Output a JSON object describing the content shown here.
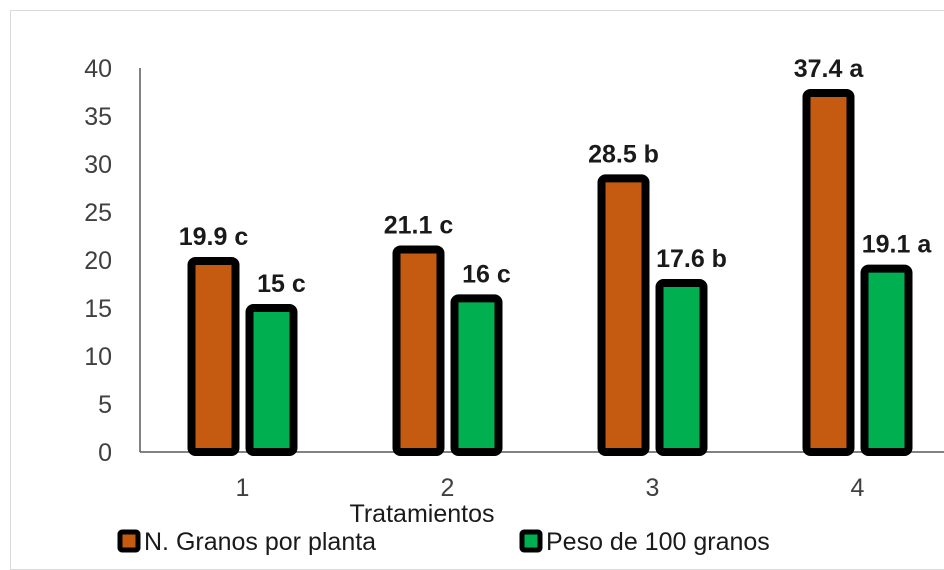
{
  "chart_data": {
    "type": "bar",
    "categories": [
      "1",
      "2",
      "3",
      "4"
    ],
    "xlabel": "Tratamientos",
    "ylabel": "",
    "title": "",
    "ylim": [
      0,
      40
    ],
    "yticks": [
      0,
      5,
      10,
      15,
      20,
      25,
      30,
      35,
      40
    ],
    "grid": false,
    "legend_position": "bottom",
    "series": [
      {
        "name": "N. Granos por planta",
        "values": [
          19.9,
          21.1,
          28.5,
          37.4
        ],
        "labels": [
          "19.9 c",
          "21.1 c",
          "28.5 b",
          "37.4 a"
        ],
        "color": "#c55a11",
        "edge_color": "#000000"
      },
      {
        "name": "Peso de 100 granos",
        "values": [
          15,
          16,
          17.6,
          19.1
        ],
        "labels": [
          "15 c",
          "16 c",
          "17.6 b",
          "19.1 a"
        ],
        "color": "#00b050",
        "edge_color": "#000000"
      }
    ]
  }
}
